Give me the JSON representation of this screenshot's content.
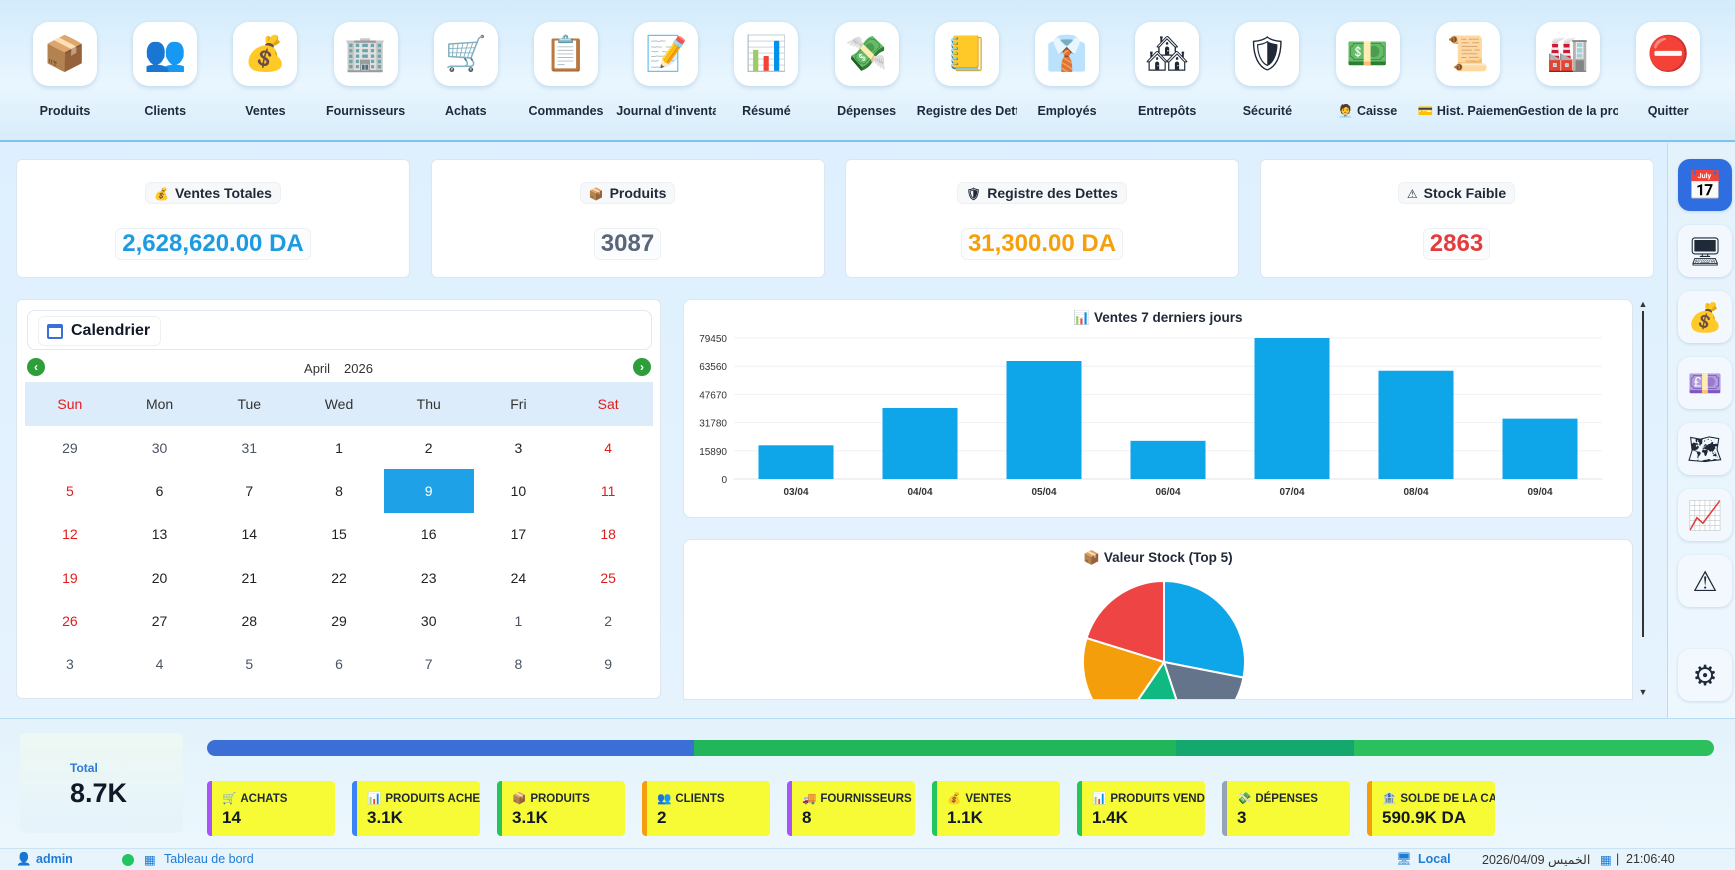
{
  "toolbar": [
    {
      "label": "Produits",
      "icon": "box-icon",
      "glyph": "📦"
    },
    {
      "label": "Clients",
      "icon": "users-icon",
      "glyph": "👥"
    },
    {
      "label": "Ventes",
      "icon": "money-bag-icon",
      "glyph": "💰"
    },
    {
      "label": "Fournisseurs",
      "icon": "building-icon",
      "glyph": "🏢"
    },
    {
      "label": "Achats",
      "icon": "cart-icon",
      "glyph": "🛒"
    },
    {
      "label": "Commandes",
      "icon": "clipboard-icon",
      "glyph": "📋"
    },
    {
      "label": "Journal d'inventa",
      "icon": "document-pencil-icon",
      "glyph": "📝"
    },
    {
      "label": "Résumé",
      "icon": "bar-chart-icon",
      "glyph": "📊"
    },
    {
      "label": "Dépenses",
      "icon": "flying-money-icon",
      "glyph": "💸"
    },
    {
      "label": "Registre des Dette",
      "icon": "notebook-icon",
      "glyph": "📒"
    },
    {
      "label": "Employés",
      "icon": "necktie-icon",
      "glyph": "👔"
    },
    {
      "label": "Entrepôts",
      "icon": "house-icon",
      "glyph": "🏘"
    },
    {
      "label": "Sécurité",
      "icon": "shield-icon",
      "glyph": "🛡"
    },
    {
      "label": "🧑‍💼 Caisse",
      "icon": "dollar-banknote-icon",
      "glyph": "💵"
    },
    {
      "label": "💳 Hist. Paiement",
      "icon": "scroll-icon",
      "glyph": "📜"
    },
    {
      "label": "Gestion de la produ",
      "icon": "factory-icon",
      "glyph": "🏭"
    },
    {
      "label": "Quitter",
      "icon": "no-entry-icon",
      "glyph": "⛔"
    }
  ],
  "kpis": [
    {
      "icon": "💰",
      "title": "Ventes Totales",
      "value": "2,628,620.00 DA",
      "color": "#1e9be0"
    },
    {
      "icon": "📦",
      "title": "Produits",
      "value": "3087",
      "color": "#5a6678"
    },
    {
      "icon": "🛡",
      "title": "Registre des Dettes",
      "value": "31,300.00 DA",
      "color": "#f5a00a"
    },
    {
      "icon": "⚠",
      "title": "Stock Faible",
      "value": "2863",
      "color": "#e23c3c"
    }
  ],
  "calendar": {
    "title": "Calendrier",
    "month": "April",
    "year": "2026",
    "weekdays": [
      "Sun",
      "Mon",
      "Tue",
      "Wed",
      "Thu",
      "Fri",
      "Sat"
    ],
    "days": [
      29,
      30,
      31,
      1,
      2,
      3,
      4,
      5,
      6,
      7,
      8,
      9,
      10,
      11,
      12,
      13,
      14,
      15,
      16,
      17,
      18,
      19,
      20,
      21,
      22,
      23,
      24,
      25,
      26,
      27,
      28,
      29,
      30,
      1,
      2,
      3,
      4,
      5,
      6,
      7,
      8,
      9
    ],
    "selected": 9
  },
  "bar_panel": {
    "title": "📊 Ventes 7 derniers jours"
  },
  "pie_panel": {
    "title": "📦 Valeur Stock (Top 5)"
  },
  "chart_data": [
    {
      "type": "bar",
      "title": "Ventes 7 derniers jours",
      "categories": [
        "03/04",
        "04/04",
        "05/04",
        "06/04",
        "07/04",
        "08/04",
        "09/04"
      ],
      "values": [
        19000,
        40000,
        66500,
        21500,
        79450,
        61000,
        34000
      ],
      "ylim": [
        0,
        79450
      ],
      "yticks": [
        0,
        15890,
        31780,
        47670,
        63560,
        79450
      ],
      "color": "#0ea5e9",
      "grid": true
    },
    {
      "type": "pie",
      "title": "Valeur Stock (Top 5)",
      "values": [
        25,
        15,
        13,
        18,
        18
      ],
      "colors": [
        "#0ea5e9",
        "#64748b",
        "#10b981",
        "#f59e0b",
        "#ef4444"
      ]
    }
  ],
  "rail": [
    {
      "icon": "calendar-icon",
      "glyph": "📅",
      "active": true
    },
    {
      "icon": "monitor-icon",
      "glyph": "🖥"
    },
    {
      "icon": "money-bag-icon",
      "glyph": "💰"
    },
    {
      "icon": "pound-banknote-icon",
      "glyph": "💷"
    },
    {
      "icon": "map-icon",
      "glyph": "🗺"
    },
    {
      "icon": "trend-chart-icon",
      "glyph": "📈"
    },
    {
      "icon": "warning-icon",
      "glyph": "⚠"
    },
    {
      "icon": "gear-icon",
      "glyph": "⚙"
    }
  ],
  "total": {
    "label": "Total",
    "value": "8.7K"
  },
  "progress": [
    {
      "share": 0.323,
      "color": "#3b6fd6"
    },
    {
      "share": 0.32,
      "color": "#22b55a"
    },
    {
      "share": 0.118,
      "color": "#14a86e"
    },
    {
      "share": 0.239,
      "color": "#2bbf5e"
    }
  ],
  "stats": [
    {
      "icon": "🛒",
      "label": "ACHATS",
      "value": "14",
      "border": "#a855f7"
    },
    {
      "icon": "📊",
      "label": "PRODUITS ACHETÉS",
      "value": "3.1K",
      "border": "#3b82f6"
    },
    {
      "icon": "📦",
      "label": "PRODUITS",
      "value": "3.1K",
      "border": "#22c55e"
    },
    {
      "icon": "👥",
      "label": "CLIENTS",
      "value": "2",
      "border": "#f59e0b"
    },
    {
      "icon": "🚚",
      "label": "FOURNISSEURS",
      "value": "8",
      "border": "#a855f7"
    },
    {
      "icon": "💰",
      "label": "VENTES",
      "value": "1.1K",
      "border": "#22c55e"
    },
    {
      "icon": "📊",
      "label": "PRODUITS VENDUS",
      "value": "1.4K",
      "border": "#22c55e"
    },
    {
      "icon": "💸",
      "label": "DÉPENSES",
      "value": "3",
      "border": "#94a3b8"
    },
    {
      "icon": "🏦",
      "label": "SOLDE DE LA CAISSE",
      "value": "590.9K DA",
      "border": "#f59e0b"
    }
  ],
  "status": {
    "user": "admin",
    "page": "Tableau de bord",
    "mode": "Local",
    "date": "2026/04/09 الخميس",
    "time": "21:06:40"
  }
}
